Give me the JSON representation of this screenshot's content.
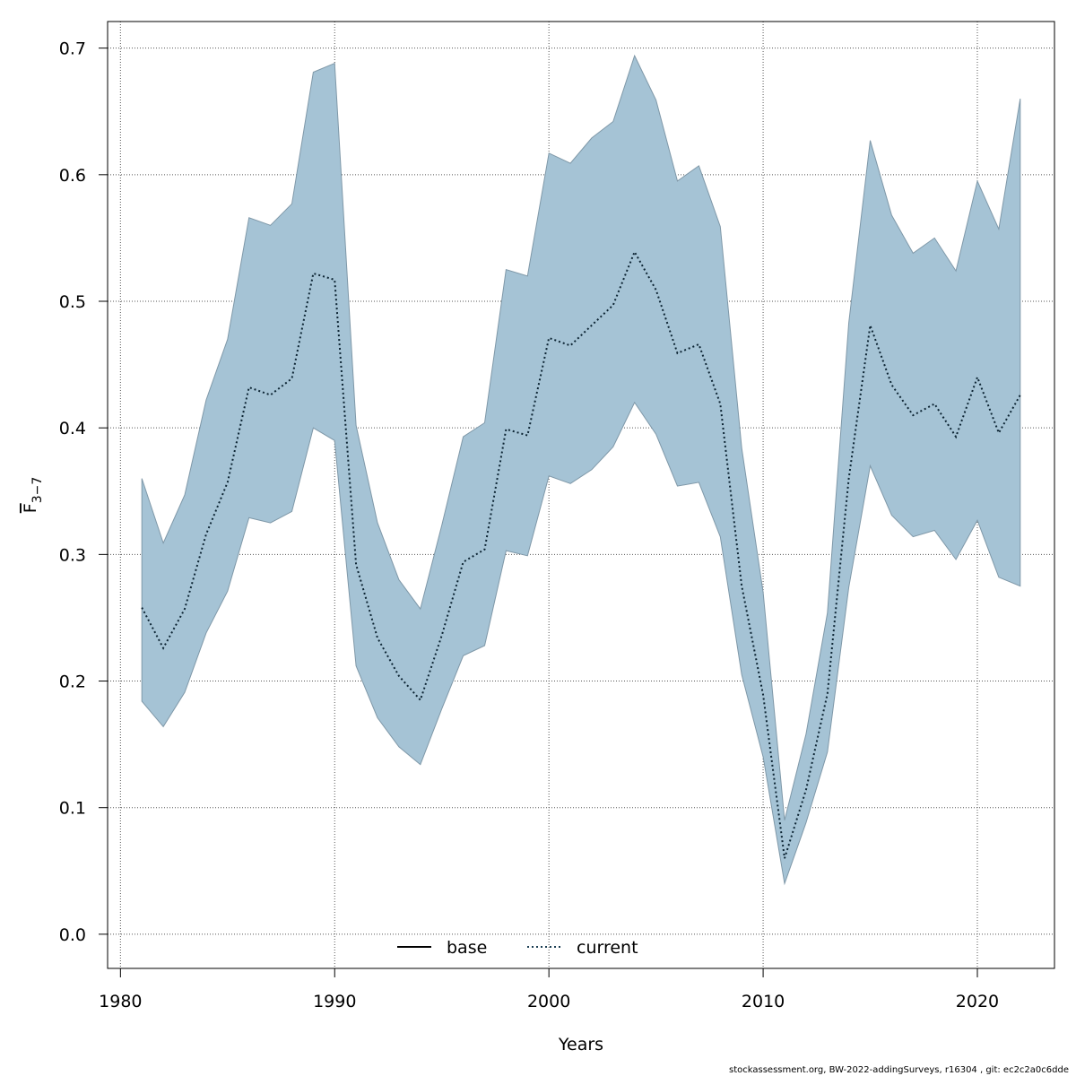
{
  "chart_data": {
    "type": "area",
    "title": "",
    "xlabel": "Years",
    "ylabel": {
      "main": "F",
      "subscript": "3−7"
    },
    "xlim": [
      1979.4,
      2023.6
    ],
    "ylim": [
      -0.027,
      0.721
    ],
    "x_ticks": [
      1980,
      1990,
      2000,
      2010,
      2020
    ],
    "y_ticks": [
      0.0,
      0.1,
      0.2,
      0.3,
      0.4,
      0.5,
      0.6,
      0.7
    ],
    "y_tick_labels": [
      "0.0",
      "0.1",
      "0.2",
      "0.3",
      "0.4",
      "0.5",
      "0.6",
      "0.7"
    ],
    "grid": true,
    "legend": {
      "position": "bottom-center",
      "entries": [
        {
          "label": "base",
          "style": "solid",
          "color": "#000000"
        },
        {
          "label": "current",
          "style": "dotted",
          "color": "#1a3d52"
        }
      ]
    },
    "band_color": "#a5c3d5",
    "years": [
      1981,
      1982,
      1983,
      1984,
      1985,
      1986,
      1987,
      1988,
      1989,
      1990,
      1991,
      1992,
      1993,
      1994,
      1995,
      1996,
      1997,
      1998,
      1999,
      2000,
      2001,
      2002,
      2003,
      2004,
      2005,
      2006,
      2007,
      2008,
      2009,
      2010,
      2011,
      2012,
      2013,
      2014,
      2015,
      2016,
      2017,
      2018,
      2019,
      2020,
      2021,
      2022
    ],
    "series": [
      {
        "name": "current",
        "values": [
          0.258,
          0.226,
          0.257,
          0.316,
          0.357,
          0.432,
          0.426,
          0.439,
          0.522,
          0.517,
          0.292,
          0.234,
          0.204,
          0.185,
          0.236,
          0.294,
          0.304,
          0.399,
          0.394,
          0.471,
          0.465,
          0.481,
          0.497,
          0.539,
          0.509,
          0.459,
          0.466,
          0.419,
          0.275,
          0.189,
          0.06,
          0.114,
          0.19,
          0.36,
          0.481,
          0.434,
          0.41,
          0.419,
          0.393,
          0.44,
          0.396,
          0.426
        ],
        "lower": [
          0.184,
          0.164,
          0.191,
          0.238,
          0.271,
          0.329,
          0.325,
          0.334,
          0.4,
          0.39,
          0.212,
          0.171,
          0.148,
          0.134,
          0.178,
          0.22,
          0.228,
          0.303,
          0.299,
          0.362,
          0.356,
          0.367,
          0.385,
          0.42,
          0.395,
          0.354,
          0.357,
          0.314,
          0.205,
          0.14,
          0.04,
          0.088,
          0.144,
          0.274,
          0.37,
          0.331,
          0.314,
          0.319,
          0.296,
          0.327,
          0.282,
          0.275
        ],
        "upper": [
          0.36,
          0.309,
          0.347,
          0.422,
          0.47,
          0.566,
          0.56,
          0.577,
          0.681,
          0.688,
          0.402,
          0.325,
          0.28,
          0.257,
          0.323,
          0.393,
          0.404,
          0.525,
          0.52,
          0.617,
          0.609,
          0.629,
          0.642,
          0.694,
          0.659,
          0.595,
          0.607,
          0.559,
          0.384,
          0.27,
          0.09,
          0.158,
          0.254,
          0.483,
          0.627,
          0.568,
          0.538,
          0.55,
          0.524,
          0.595,
          0.557,
          0.66
        ]
      }
    ]
  },
  "footer": "stockassessment.org, BW-2022-addingSurveys, r16304 , git: ec2c2a0c6dde"
}
